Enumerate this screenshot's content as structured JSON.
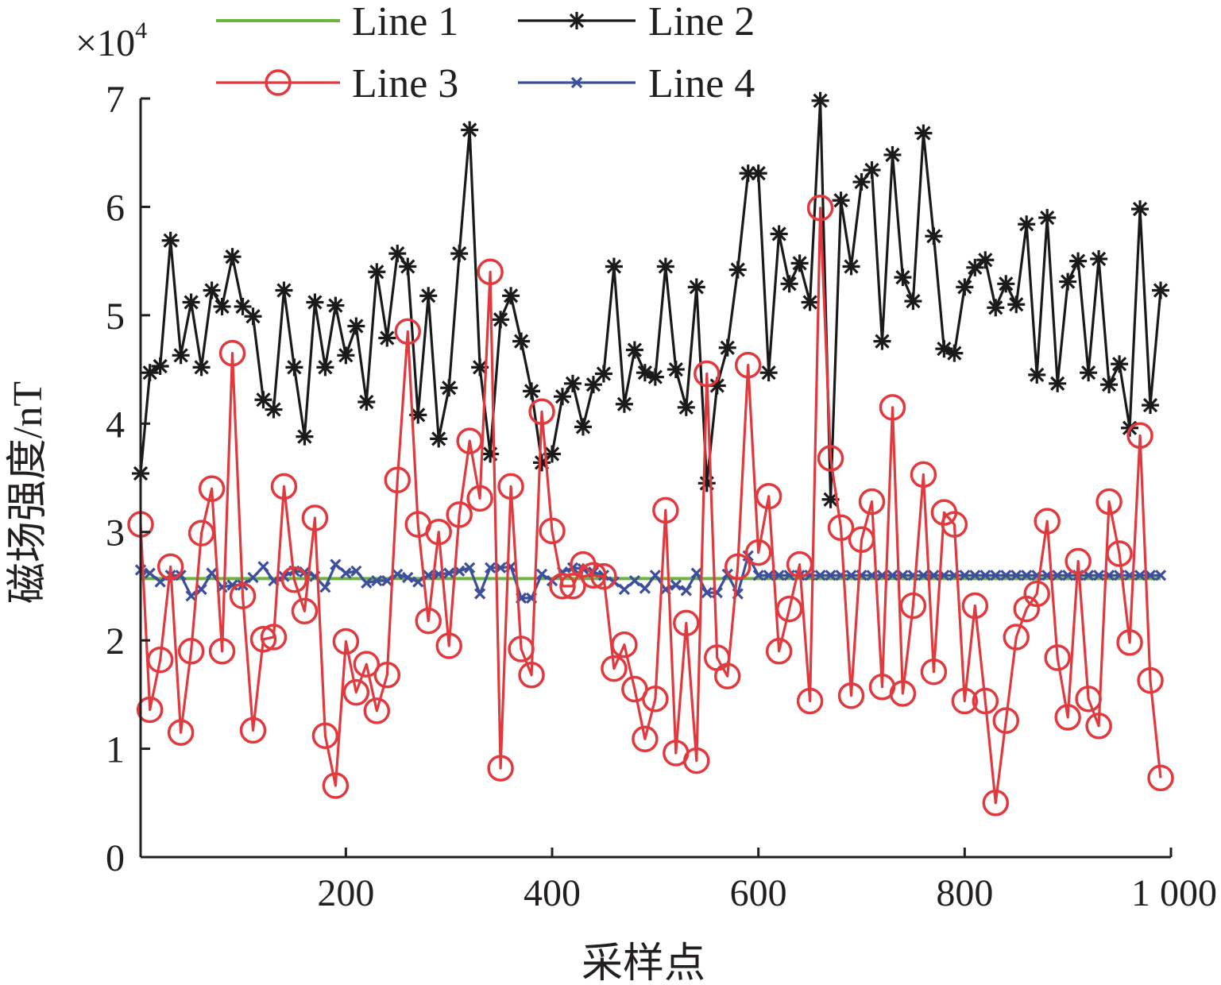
{
  "chart_data": {
    "type": "line",
    "title": "",
    "xlabel": "采样点",
    "ylabel": "磁场强度/nT",
    "y_scale_label": "×10",
    "y_scale_exponent": "4",
    "xlim": [
      1,
      1000
    ],
    "ylim": [
      0,
      7
    ],
    "xticks": [
      200,
      400,
      600,
      800,
      1000
    ],
    "xtick_labels": [
      "200",
      "400",
      "600",
      "800",
      "1 000"
    ],
    "yticks": [
      0,
      1,
      2,
      3,
      4,
      5,
      6,
      7
    ],
    "ytick_labels": [
      "0",
      "1",
      "2",
      "3",
      "4",
      "5",
      "6",
      "7"
    ],
    "grid": false,
    "legend_position": "top",
    "x": [
      1,
      10,
      20,
      30,
      40,
      50,
      60,
      70,
      80,
      90,
      100,
      110,
      120,
      130,
      140,
      150,
      160,
      170,
      180,
      190,
      200,
      210,
      220,
      230,
      240,
      250,
      260,
      270,
      280,
      290,
      300,
      310,
      320,
      330,
      340,
      350,
      360,
      370,
      380,
      390,
      400,
      410,
      420,
      430,
      440,
      450,
      460,
      470,
      480,
      490,
      500,
      510,
      520,
      530,
      540,
      550,
      560,
      570,
      580,
      590,
      600,
      610,
      620,
      630,
      640,
      650,
      660,
      670,
      680,
      690,
      700,
      710,
      720,
      730,
      740,
      750,
      760,
      770,
      780,
      790,
      800,
      810,
      820,
      830,
      840,
      850,
      860,
      870,
      880,
      890,
      900,
      910,
      920,
      930,
      940,
      950,
      960,
      970,
      980,
      990
    ],
    "series": [
      {
        "name": "Line 1",
        "color": "#6cb33f",
        "marker": "none",
        "values": [
          2.57,
          2.57,
          2.57,
          2.57,
          2.57,
          2.57,
          2.57,
          2.57,
          2.57,
          2.57,
          2.57,
          2.57,
          2.57,
          2.57,
          2.57,
          2.57,
          2.57,
          2.57,
          2.57,
          2.57,
          2.57,
          2.57,
          2.57,
          2.57,
          2.57,
          2.57,
          2.57,
          2.57,
          2.57,
          2.57,
          2.57,
          2.57,
          2.57,
          2.57,
          2.57,
          2.57,
          2.57,
          2.57,
          2.57,
          2.57,
          2.57,
          2.57,
          2.57,
          2.57,
          2.57,
          2.57,
          2.57,
          2.57,
          2.57,
          2.57,
          2.57,
          2.57,
          2.57,
          2.57,
          2.57,
          2.57,
          2.57,
          2.57,
          2.57,
          2.57,
          2.57,
          2.57,
          2.57,
          2.57,
          2.57,
          2.57,
          2.57,
          2.57,
          2.57,
          2.57,
          2.57,
          2.57,
          2.57,
          2.57,
          2.57,
          2.57,
          2.57,
          2.57,
          2.57,
          2.57,
          2.57,
          2.57,
          2.57,
          2.57,
          2.57,
          2.57,
          2.57,
          2.57,
          2.57,
          2.57,
          2.57,
          2.57,
          2.57,
          2.57,
          2.57,
          2.57,
          2.57,
          2.57,
          2.57,
          2.57
        ]
      },
      {
        "name": "Line 2",
        "color": "#1a1a1a",
        "marker": "asterisk",
        "values": [
          3.54,
          4.47,
          4.53,
          5.69,
          4.63,
          5.12,
          4.52,
          5.23,
          5.08,
          5.54,
          5.08,
          4.99,
          4.22,
          4.13,
          5.23,
          4.52,
          3.88,
          5.12,
          4.52,
          5.09,
          4.63,
          4.9,
          4.2,
          5.4,
          4.79,
          5.57,
          5.45,
          4.08,
          5.18,
          3.86,
          4.33,
          5.57,
          6.71,
          4.52,
          3.72,
          4.96,
          5.18,
          4.76,
          4.3,
          3.64,
          3.72,
          4.25,
          4.37,
          3.97,
          4.36,
          4.46,
          5.45,
          4.18,
          4.68,
          4.47,
          4.43,
          5.45,
          4.5,
          4.15,
          5.26,
          3.45,
          4.35,
          4.7,
          5.42,
          6.31,
          6.31,
          4.47,
          5.75,
          5.29,
          5.48,
          5.12,
          6.98,
          3.3,
          6.06,
          5.45,
          6.23,
          6.34,
          4.76,
          6.48,
          5.35,
          5.13,
          6.68,
          5.73,
          4.69,
          4.65,
          5.26,
          5.44,
          5.51,
          5.07,
          5.29,
          5.1,
          5.84,
          4.45,
          5.9,
          4.37,
          5.31,
          5.5,
          4.47,
          5.52,
          4.36,
          4.55,
          3.96,
          5.98,
          4.17,
          5.23
        ]
      },
      {
        "name": "Line 3",
        "color": "#e03a3e",
        "marker": "circle",
        "values": [
          3.07,
          1.36,
          1.82,
          2.68,
          1.15,
          1.9,
          2.99,
          3.4,
          1.9,
          4.65,
          2.41,
          1.17,
          2.01,
          2.03,
          3.42,
          2.56,
          2.27,
          3.13,
          1.12,
          0.66,
          1.99,
          1.52,
          1.78,
          1.35,
          1.68,
          3.48,
          4.85,
          3.07,
          2.18,
          3.0,
          1.95,
          3.16,
          3.84,
          3.31,
          5.4,
          0.82,
          3.42,
          1.92,
          1.68,
          4.11,
          3.01,
          2.5,
          2.5,
          2.7,
          2.6,
          2.59,
          1.74,
          1.96,
          1.55,
          1.09,
          1.46,
          3.2,
          0.96,
          2.16,
          0.89,
          4.46,
          1.84,
          1.67,
          2.68,
          4.54,
          2.81,
          3.33,
          1.9,
          2.29,
          2.7,
          1.44,
          5.99,
          3.68,
          3.04,
          1.49,
          2.93,
          3.28,
          1.57,
          4.15,
          1.51,
          2.32,
          3.53,
          1.71,
          3.18,
          3.07,
          1.44,
          2.32,
          1.44,
          0.5,
          1.26,
          2.03,
          2.29,
          2.43,
          3.1,
          1.84,
          1.29,
          2.73,
          1.46,
          1.21,
          3.28,
          2.8,
          1.98,
          3.89,
          1.63,
          0.73
        ]
      },
      {
        "name": "Line 4",
        "color": "#3d4f9b",
        "marker": "x",
        "values": [
          2.65,
          2.62,
          2.54,
          2.6,
          2.6,
          2.41,
          2.47,
          2.62,
          2.49,
          2.51,
          2.51,
          2.58,
          2.68,
          2.55,
          2.59,
          2.64,
          2.63,
          2.59,
          2.49,
          2.7,
          2.62,
          2.64,
          2.53,
          2.55,
          2.55,
          2.61,
          2.58,
          2.54,
          2.6,
          2.61,
          2.62,
          2.64,
          2.67,
          2.43,
          2.67,
          2.67,
          2.68,
          2.39,
          2.39,
          2.61,
          2.55,
          2.63,
          2.67,
          2.66,
          2.63,
          2.6,
          2.54,
          2.47,
          2.55,
          2.48,
          2.6,
          2.47,
          2.51,
          2.46,
          2.62,
          2.44,
          2.44,
          2.61,
          2.43,
          2.78,
          2.6,
          2.6,
          2.6,
          2.6,
          2.6,
          2.6,
          2.6,
          2.6,
          2.6,
          2.6,
          2.6,
          2.6,
          2.6,
          2.6,
          2.6,
          2.6,
          2.6,
          2.6,
          2.6,
          2.6,
          2.6,
          2.6,
          2.6,
          2.6,
          2.6,
          2.6,
          2.6,
          2.6,
          2.6,
          2.6,
          2.6,
          2.6,
          2.6,
          2.6,
          2.6,
          2.6,
          2.6,
          2.6,
          2.6,
          2.6
        ]
      }
    ]
  }
}
